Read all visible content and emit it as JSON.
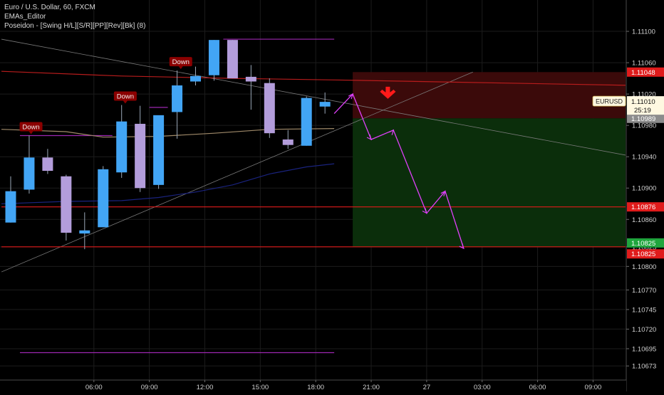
{
  "legend": {
    "symbol_line": "Euro / U.S. Dollar, 60, FXCM",
    "indicator_1": "EMAs_Editor",
    "indicator_2": "Poseidon - [Swing H/L][S/R][PP][Rev][Bk] (8)"
  },
  "colors": {
    "background": "#000000",
    "grid": "#1c1c1c",
    "bull": "#42a5f5",
    "bear": "#b39ddb",
    "wick": "#9aa8b8",
    "ema_red": "#b71c1c",
    "ema_tan": "#a08a6a",
    "ema_blue": "#1a237e",
    "purple": "#9c27b0",
    "projection": "#e040fb",
    "stop_zone": "#3b0a0a",
    "target_zone": "#0b2e0b",
    "label_red": "#e01b1b",
    "label_green": "#1fa53d",
    "label_gray": "#8c8c8c",
    "badge_bg": "#8b0000",
    "arrow_red": "#ff1a1a"
  },
  "chart_data": {
    "type": "candlestick",
    "symbol": "EURUSD",
    "timeframe": "60",
    "ylim": [
      1.10655,
      1.1114
    ],
    "y_ticks": [
      1.111,
      1.1106,
      1.1102,
      1.1098,
      1.1094,
      1.109,
      1.1086,
      1.10825,
      1.108,
      1.1077,
      1.10745,
      1.1072,
      1.10695,
      1.10673
    ],
    "y_tick_labels": [
      "1.11100",
      "1.11060",
      "1.11020",
      "1.10980",
      "1.10940",
      "1.10900",
      "1.10860",
      "1.10825",
      "1.10800",
      "1.10770",
      "1.10745",
      "1.10720",
      "1.10695",
      "1.10673"
    ],
    "x_ticks": [
      {
        "index": 4.5,
        "label": "06:00"
      },
      {
        "index": 7.5,
        "label": "09:00"
      },
      {
        "index": 10.5,
        "label": "12:00"
      },
      {
        "index": 13.5,
        "label": "15:00"
      },
      {
        "index": 16.5,
        "label": "18:00"
      },
      {
        "index": 19.5,
        "label": "21:00"
      },
      {
        "index": 22.5,
        "label": "27"
      },
      {
        "index": 25.5,
        "label": "03:00"
      },
      {
        "index": 28.5,
        "label": "06:00"
      },
      {
        "index": 31.5,
        "label": "09:00"
      }
    ],
    "x_range": [
      0,
      36
    ],
    "candles": [
      {
        "i": 0,
        "o": 1.10856,
        "h": 1.10915,
        "l": 1.10856,
        "c": 1.10896
      },
      {
        "i": 1,
        "o": 1.10898,
        "h": 1.10967,
        "l": 1.10893,
        "c": 1.10939
      },
      {
        "i": 2,
        "o": 1.10939,
        "h": 1.1095,
        "l": 1.10918,
        "c": 1.10922
      },
      {
        "i": 3,
        "o": 1.10915,
        "h": 1.10917,
        "l": 1.10833,
        "c": 1.10843
      },
      {
        "i": 4,
        "o": 1.10842,
        "h": 1.10869,
        "l": 1.10822,
        "c": 1.10846
      },
      {
        "i": 5,
        "o": 1.1085,
        "h": 1.10928,
        "l": 1.1085,
        "c": 1.10924
      },
      {
        "i": 6,
        "o": 1.1092,
        "h": 1.11006,
        "l": 1.10913,
        "c": 1.10985
      },
      {
        "i": 7,
        "o": 1.10982,
        "h": 1.11005,
        "l": 1.10895,
        "c": 1.109
      },
      {
        "i": 8,
        "o": 1.10904,
        "h": 1.10991,
        "l": 1.10899,
        "c": 1.10993
      },
      {
        "i": 9,
        "o": 1.10997,
        "h": 1.1105,
        "l": 1.10963,
        "c": 1.11031
      },
      {
        "i": 10,
        "o": 1.11036,
        "h": 1.11055,
        "l": 1.11031,
        "c": 1.11043
      },
      {
        "i": 11,
        "o": 1.11044,
        "h": 1.11089,
        "l": 1.11037,
        "c": 1.11089
      },
      {
        "i": 12,
        "o": 1.11089,
        "h": 1.11089,
        "l": 1.1104,
        "c": 1.1104
      },
      {
        "i": 13,
        "o": 1.11042,
        "h": 1.11057,
        "l": 1.11,
        "c": 1.11036
      },
      {
        "i": 14,
        "o": 1.11034,
        "h": 1.1104,
        "l": 1.10964,
        "c": 1.1097
      },
      {
        "i": 15,
        "o": 1.10962,
        "h": 1.10974,
        "l": 1.1095,
        "c": 1.10955
      },
      {
        "i": 16,
        "o": 1.10954,
        "h": 1.11017,
        "l": 1.10954,
        "c": 1.11015
      },
      {
        "i": 17,
        "o": 1.11004,
        "h": 1.11022,
        "l": 1.10995,
        "c": 1.1101
      }
    ],
    "emas": [
      {
        "name": "ema-red",
        "color": "#b71c1c",
        "points": [
          [
            -0.5,
            1.11049
          ],
          [
            6,
            1.11043
          ],
          [
            12,
            1.1104
          ],
          [
            17.5,
            1.11038
          ],
          [
            36,
            1.1103
          ]
        ]
      },
      {
        "name": "ema-tan",
        "color": "#a08a6a",
        "points": [
          [
            -0.5,
            1.10975
          ],
          [
            3,
            1.10972
          ],
          [
            5,
            1.10965
          ],
          [
            8,
            1.10966
          ],
          [
            11,
            1.1097
          ],
          [
            14,
            1.10975
          ],
          [
            17.5,
            1.10976
          ]
        ]
      },
      {
        "name": "ema-blue",
        "color": "#1a237e",
        "points": [
          [
            -0.5,
            1.1088
          ],
          [
            3,
            1.10883
          ],
          [
            6,
            1.10884
          ],
          [
            8,
            1.10888
          ],
          [
            10,
            1.10895
          ],
          [
            12,
            1.10904
          ],
          [
            14,
            1.10918
          ],
          [
            16,
            1.10927
          ],
          [
            17.5,
            1.10931
          ]
        ]
      }
    ],
    "trendlines": [
      {
        "name": "trendline-descending",
        "points": [
          [
            -0.5,
            1.1109
          ],
          [
            36,
            1.1093
          ]
        ]
      },
      {
        "name": "trendline-ascending",
        "points": [
          [
            -0.5,
            1.10793
          ],
          [
            25,
            1.11048
          ]
        ]
      }
    ],
    "levels": [
      {
        "name": "level-top-purple",
        "y": 1.1109,
        "x0": 11.5,
        "x1": 17.5,
        "color": "#9c27b0"
      },
      {
        "name": "level-left-purple",
        "y": 1.10967,
        "x0": 0.5,
        "x1": 5.5,
        "color": "#9c27b0"
      },
      {
        "name": "level-swing-purple",
        "y": 1.11003,
        "x0": 7.5,
        "x1": 8.5,
        "color": "#9c27b0"
      },
      {
        "name": "level-bottom-purple",
        "y": 1.1069,
        "x0": 0.5,
        "x1": 17.5,
        "color": "#9c27b0"
      },
      {
        "name": "level-red-1",
        "y": 1.10876,
        "x0": -0.5,
        "x1": 36,
        "color": "#e01b1b"
      },
      {
        "name": "level-red-2",
        "y": 1.10825,
        "x0": -0.5,
        "x1": 36,
        "color": "#e01b1b"
      }
    ],
    "position": {
      "x0": 18.5,
      "x1": 36,
      "stop": 1.11048,
      "entry": 1.10989,
      "target": 1.10825
    },
    "projection_path": [
      [
        17.5,
        1.10995
      ],
      [
        18.5,
        1.1102
      ],
      [
        19.5,
        1.10962
      ],
      [
        20.7,
        1.10974
      ],
      [
        22.5,
        1.10868
      ],
      [
        23.5,
        1.10896
      ],
      [
        24.5,
        1.10823
      ]
    ],
    "signals": [
      {
        "label": "Down",
        "i": 1.1,
        "y": 1.10967
      },
      {
        "label": "Down",
        "i": 6.2,
        "y": 1.11006
      },
      {
        "label": "Down",
        "i": 9.2,
        "y": 1.1105
      }
    ],
    "arrow": {
      "i": 20.4,
      "y": 1.11022
    },
    "price_labels": [
      {
        "value": "1.11048",
        "y": 1.11048,
        "color": "#e01b1b"
      },
      {
        "value": "1.10989",
        "y": 1.10989,
        "color": "#8c8c8c"
      },
      {
        "value": "1.10876",
        "y": 1.10876,
        "color": "#e01b1b"
      },
      {
        "value": "1.10825",
        "y": 1.1083,
        "color": "#1fa53d"
      },
      {
        "value": "1.10825",
        "y": 1.10816,
        "color": "#e01b1b"
      }
    ],
    "current": {
      "symbol": "EURUSD",
      "price": "1.11010",
      "countdown": "25:19",
      "y": 1.1101
    }
  }
}
